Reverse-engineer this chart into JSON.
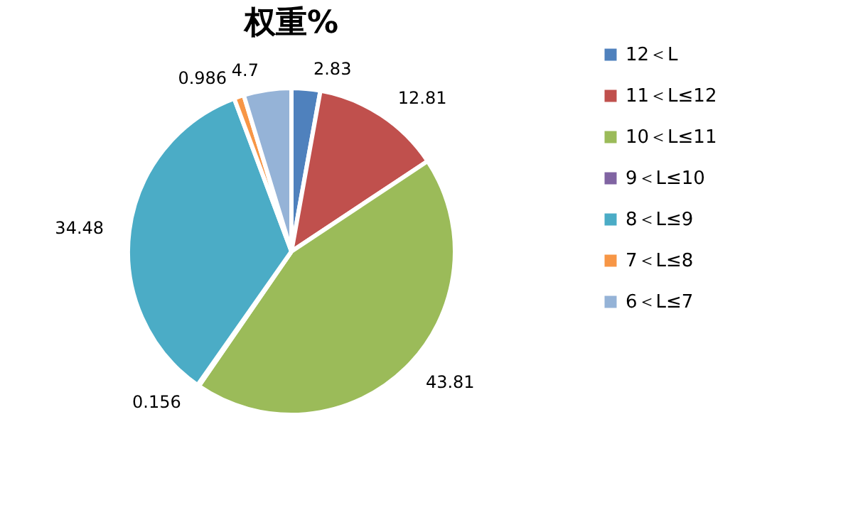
{
  "chart_data": {
    "type": "pie",
    "title": "权重%",
    "categories": [
      "12＜L",
      "11＜L≤12",
      "10＜L≤11",
      "9＜L≤10",
      "8＜L≤9",
      "7＜L≤8",
      "6＜L≤7"
    ],
    "values": [
      2.83,
      12.81,
      43.81,
      0.156,
      34.48,
      0.986,
      4.7
    ],
    "colors": [
      "#4f81bd",
      "#c0504d",
      "#9bbb59",
      "#8064a2",
      "#4bacc6",
      "#f79646",
      "#95b3d7"
    ],
    "data_labels": true,
    "legend": "right"
  }
}
